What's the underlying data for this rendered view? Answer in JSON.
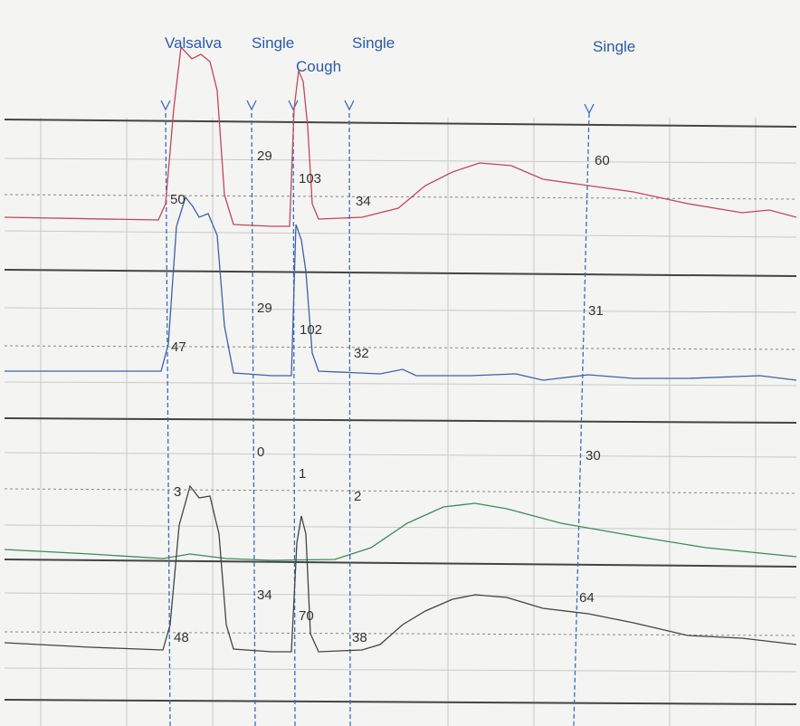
{
  "events": [
    "Valsalva",
    "Single",
    "Cough",
    "Single",
    "Single"
  ],
  "traces": [
    {
      "readings": [
        50,
        29,
        103,
        34,
        60
      ]
    },
    {
      "readings": [
        47,
        29,
        102,
        32,
        31
      ]
    },
    {
      "readings": [
        3,
        0,
        1,
        2,
        30
      ]
    },
    {
      "readings": [
        48,
        34,
        70,
        38,
        64
      ]
    }
  ]
}
